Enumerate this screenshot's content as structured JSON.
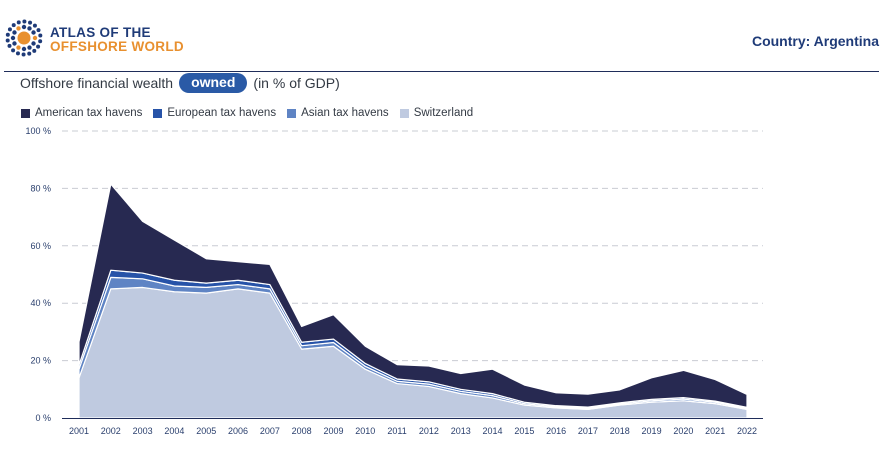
{
  "header": {
    "logo_line1": "ATLAS OF THE",
    "logo_line2": "OFFSHORE WORLD",
    "country": "Country: Argentina",
    "logo_colors": {
      "blue": "#1f3b78",
      "orange": "#e8902f"
    }
  },
  "subtitle": {
    "before": "Offshore financial wealth",
    "toggle": "owned",
    "after": "(in % of GDP)"
  },
  "chart_data": {
    "type": "area",
    "stacked": true,
    "x": [
      "2001",
      "2002",
      "2003",
      "2004",
      "2005",
      "2006",
      "2007",
      "2008",
      "2009",
      "2010",
      "2011",
      "2012",
      "2013",
      "2014",
      "2015",
      "2016",
      "2017",
      "2018",
      "2019",
      "2020",
      "2021",
      "2022"
    ],
    "y_ticks": [
      "0 %",
      "20 %",
      "40 %",
      "60 %",
      "80 %",
      "100 %"
    ],
    "ylim": [
      0,
      100
    ],
    "grid": true,
    "legend_position": "top-left",
    "series": [
      {
        "name": "Switzerland",
        "color": "#bfcae0",
        "values": [
          14,
          45,
          45.5,
          44,
          43.5,
          45,
          43.5,
          24,
          25,
          17,
          12,
          11,
          8.5,
          7,
          4.5,
          3.5,
          3,
          4.5,
          5.5,
          6,
          5,
          3
        ]
      },
      {
        "name": "Asian tax havens",
        "color": "#5f84c4",
        "values": [
          3,
          4,
          3,
          2,
          2,
          1.5,
          1.5,
          1.2,
          1.3,
          1,
          0.8,
          0.8,
          0.8,
          0.8,
          0.5,
          0.4,
          0.4,
          0.4,
          0.5,
          0.6,
          0.5,
          0.4
        ]
      },
      {
        "name": "European tax havens",
        "color": "#2753a8",
        "values": [
          1.5,
          2.5,
          2,
          2,
          1.5,
          1.5,
          1.5,
          1.2,
          1.2,
          1,
          0.8,
          0.8,
          0.7,
          0.7,
          0.5,
          0.4,
          0.4,
          0.4,
          0.5,
          0.5,
          0.4,
          0.3
        ]
      },
      {
        "name": "American tax havens",
        "color": "#272951",
        "values": [
          8,
          30,
          18,
          14,
          8.5,
          6.5,
          7,
          5.5,
          8.5,
          6,
          5,
          5.5,
          5.5,
          8.5,
          6,
          4.5,
          4.5,
          4.5,
          7.5,
          9.5,
          7.5,
          4.5
        ]
      }
    ],
    "legend_order": [
      "American tax havens",
      "European tax havens",
      "Asian tax havens",
      "Switzerland"
    ]
  }
}
